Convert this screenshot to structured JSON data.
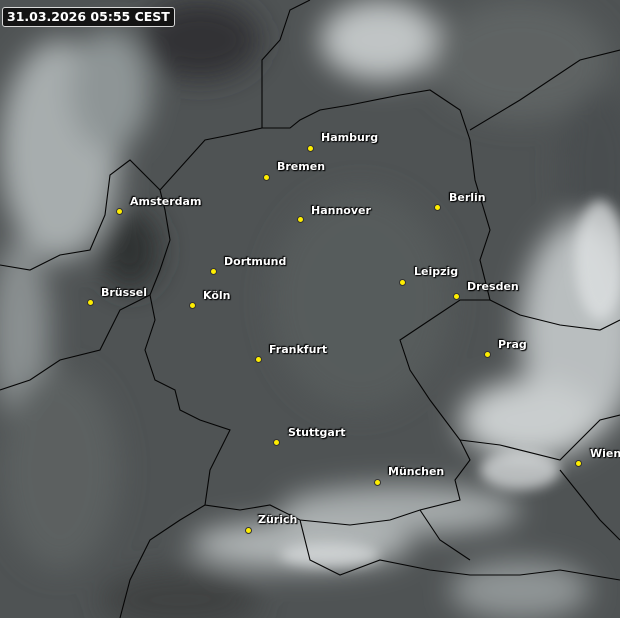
{
  "timestamp": "31.03.2026 05:55 CEST",
  "colors": {
    "city_dot": "#ffee00",
    "label": "#ffffff",
    "border": "#000000"
  },
  "cities": [
    {
      "name": "Hamburg"
    },
    {
      "name": "Bremen"
    },
    {
      "name": "Amsterdam"
    },
    {
      "name": "Hannover"
    },
    {
      "name": "Berlin"
    },
    {
      "name": "Dortmund"
    },
    {
      "name": "Leipzig"
    },
    {
      "name": "Dresden"
    },
    {
      "name": "Brüssel"
    },
    {
      "name": "Köln"
    },
    {
      "name": "Prag"
    },
    {
      "name": "Frankfurt"
    },
    {
      "name": "Stuttgart"
    },
    {
      "name": "Wien"
    },
    {
      "name": "München"
    },
    {
      "name": "Zürich"
    }
  ]
}
